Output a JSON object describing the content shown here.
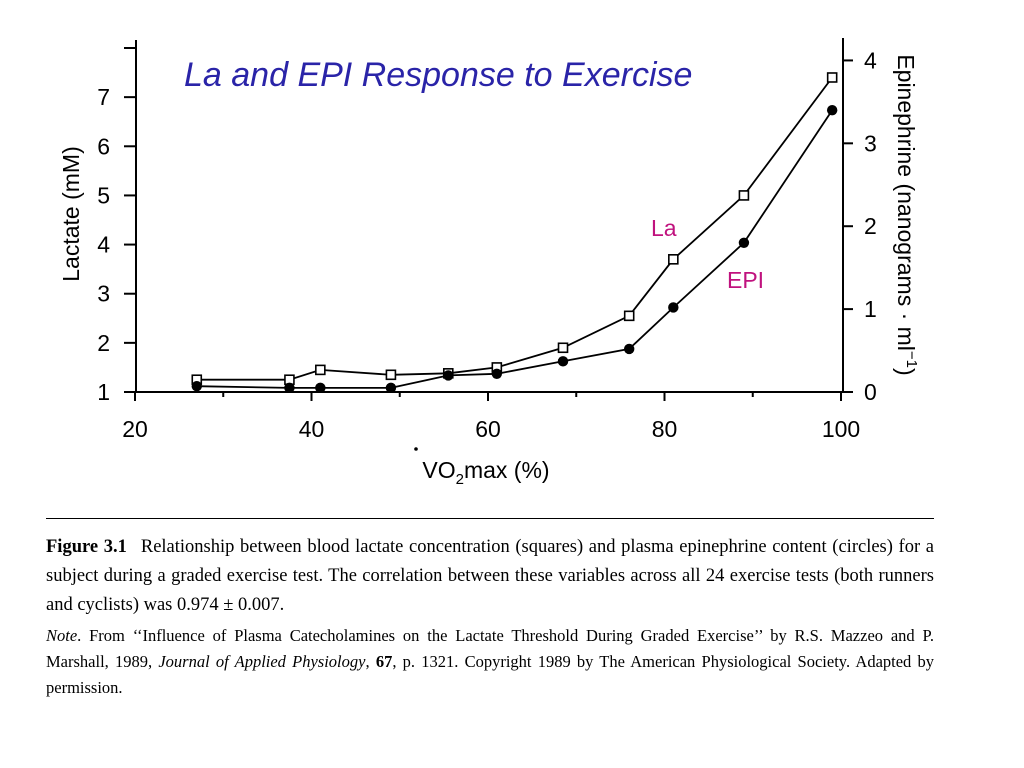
{
  "chart_data": {
    "type": "line",
    "title": "La and EPI Response to Exercise",
    "title_color": "#2a24a8",
    "xlabel_prefix": "VO",
    "xlabel_sub": "2",
    "xlabel_suffix": "max (%)",
    "ylabel_left": "Lactate (mM)",
    "ylabel_right": "Epinephrine (nanograms · ml",
    "ylabel_right_sup": "−1",
    "ylabel_right_close": ")",
    "xlim": [
      20,
      100
    ],
    "ylim_left": [
      1,
      8
    ],
    "ylim_right": [
      0,
      4.15
    ],
    "x_ticks": [
      20,
      40,
      60,
      80,
      100
    ],
    "y_left_ticks": [
      1,
      2,
      3,
      4,
      5,
      6,
      7
    ],
    "y_right_ticks": [
      0,
      1,
      2,
      3,
      4
    ],
    "grid": false,
    "series": [
      {
        "name": "La",
        "label_color": "#c0127e",
        "marker": "open-square",
        "axis": "left",
        "x": [
          27,
          37.5,
          41,
          49,
          55.5,
          61,
          68.5,
          76,
          81,
          89,
          99
        ],
        "y": [
          1.25,
          1.25,
          1.45,
          1.35,
          1.38,
          1.5,
          1.9,
          2.55,
          3.7,
          5.0,
          7.4
        ]
      },
      {
        "name": "EPI",
        "label_color": "#c0127e",
        "marker": "filled-circle",
        "axis": "right",
        "x": [
          27,
          37.5,
          41,
          49,
          55.5,
          61,
          68.5,
          76,
          81,
          89,
          99
        ],
        "y": [
          0.07,
          0.05,
          0.05,
          0.05,
          0.2,
          0.22,
          0.37,
          0.52,
          1.02,
          1.8,
          3.4
        ]
      }
    ]
  },
  "caption": {
    "figure_label": "Figure 3.1",
    "text": "Relationship between blood lactate concentration (squares) and plasma epinephrine content (circles) for a subject during a graded exercise test. The correlation between these variables across all 24 exercise tests (both runners and cyclists) was 0.974 ± 0.007.",
    "note_label": "Note",
    "note_intro": ". From ‘‘Influence of Plasma Catecholamines on the Lactate Threshold During Graded Exercise’’ by R.S. Mazzeo and P. Marshall, 1989, ",
    "journal": "Journal of Applied Physiology",
    "sep": ", ",
    "volume": "67",
    "note_rest": ", p. 1321. Copyright 1989 by The American Physiological Society. Adapted by permission."
  }
}
